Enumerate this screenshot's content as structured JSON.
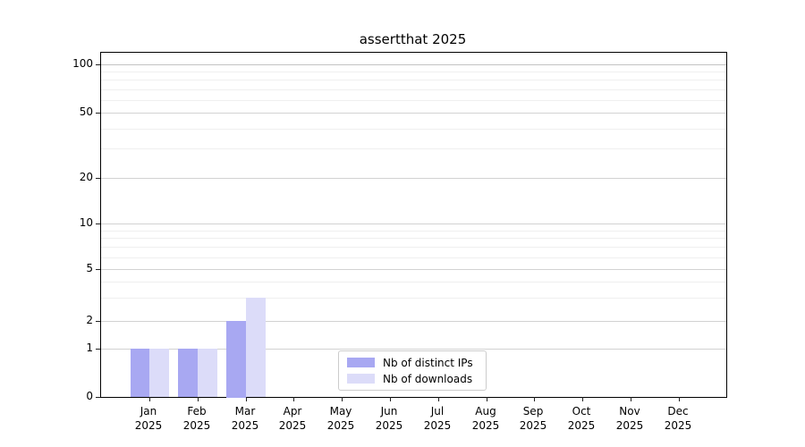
{
  "title": "assertthat 2025",
  "chart_data": {
    "type": "bar",
    "title": "assertthat 2025",
    "x_tick_months": [
      "Jan",
      "Feb",
      "Mar",
      "Apr",
      "May",
      "Jun",
      "Jul",
      "Aug",
      "Sep",
      "Oct",
      "Nov",
      "Dec"
    ],
    "x_tick_year": "2025",
    "categories": [
      "Jan 2025",
      "Feb 2025",
      "Mar 2025",
      "Apr 2025",
      "May 2025",
      "Jun 2025",
      "Jul 2025",
      "Aug 2025",
      "Sep 2025",
      "Oct 2025",
      "Nov 2025",
      "Dec 2025"
    ],
    "series": [
      {
        "name": "Nb of distinct IPs",
        "color": "#a8a8f2",
        "values": [
          1,
          1,
          2,
          0,
          0,
          0,
          0,
          0,
          0,
          0,
          0,
          0
        ]
      },
      {
        "name": "Nb of downloads",
        "color": "#dcdcf9",
        "values": [
          1,
          1,
          3,
          0,
          0,
          0,
          0,
          0,
          0,
          0,
          0,
          0
        ]
      }
    ],
    "y_axis": {
      "scale": "symlog",
      "major_ticks": [
        0,
        1,
        2,
        5,
        10,
        20,
        50,
        100
      ],
      "minor_gridlines": [
        3,
        4,
        6,
        7,
        8,
        9,
        30,
        40,
        60,
        70,
        80,
        90
      ],
      "range": [
        0,
        110
      ]
    },
    "grid": "horizontal-only",
    "legend": {
      "position": "inside-bottom-center"
    }
  }
}
